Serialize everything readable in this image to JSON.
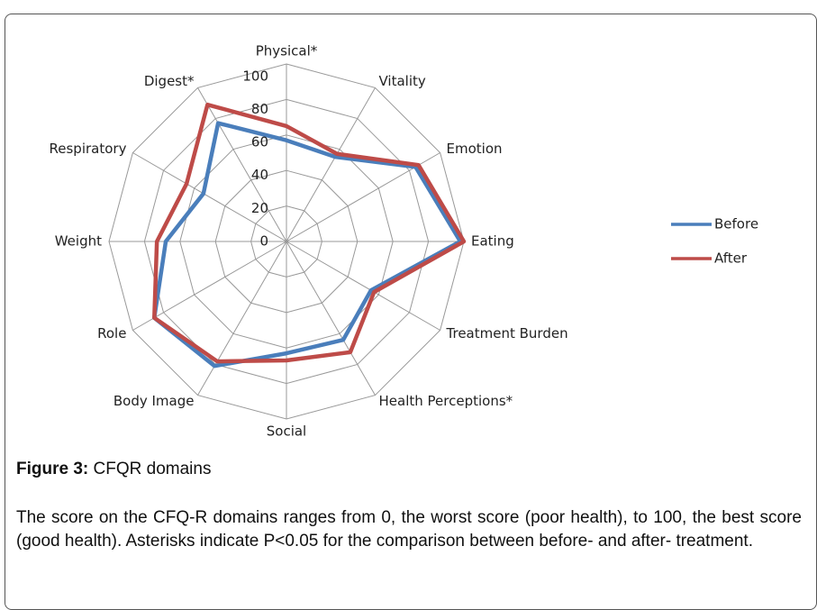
{
  "chart_data": {
    "type": "radar",
    "categories": [
      "Physical*",
      "Vitality",
      "Emotion",
      "Eating",
      "Treatment Burden",
      "Health Perceptions*",
      "Social",
      "Body Image",
      "Role",
      "Weight",
      "Respiratory",
      "Digest*"
    ],
    "series": [
      {
        "name": "Before",
        "color": "#4a7ebb",
        "values": [
          57,
          55,
          84,
          98,
          55,
          64,
          63,
          81,
          86,
          68,
          54,
          77
        ]
      },
      {
        "name": "After",
        "color": "#be4b48",
        "values": [
          65,
          57,
          86,
          100,
          57,
          72,
          67,
          78,
          86,
          73,
          65,
          89
        ]
      }
    ],
    "ylim": [
      0,
      100
    ],
    "yticks": [
      0,
      20,
      40,
      60,
      80,
      100
    ],
    "grid": true,
    "legend": "right"
  },
  "caption": {
    "label": "Figure 3:",
    "title": "CFQR domains",
    "text": "The score on the CFQ-R domains ranges from 0, the worst score (poor health), to 100, the best score (good health). Asterisks indicate P<0.05 for the comparison between before- and after- treatment."
  }
}
